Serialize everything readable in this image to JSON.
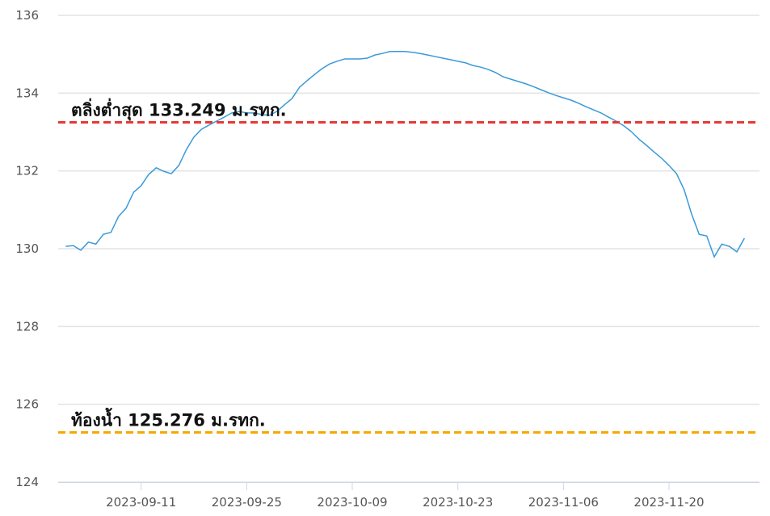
{
  "chart_data": {
    "type": "line",
    "x": [
      "2023-09-01",
      "2023-09-02",
      "2023-09-03",
      "2023-09-04",
      "2023-09-05",
      "2023-09-06",
      "2023-09-07",
      "2023-09-08",
      "2023-09-09",
      "2023-09-10",
      "2023-09-11",
      "2023-09-12",
      "2023-09-13",
      "2023-09-14",
      "2023-09-15",
      "2023-09-16",
      "2023-09-17",
      "2023-09-18",
      "2023-09-19",
      "2023-09-20",
      "2023-09-21",
      "2023-09-22",
      "2023-09-23",
      "2023-09-24",
      "2023-09-25",
      "2023-09-26",
      "2023-09-27",
      "2023-09-28",
      "2023-09-29",
      "2023-09-30",
      "2023-10-01",
      "2023-10-02",
      "2023-10-03",
      "2023-10-04",
      "2023-10-05",
      "2023-10-06",
      "2023-10-07",
      "2023-10-08",
      "2023-10-09",
      "2023-10-10",
      "2023-10-11",
      "2023-10-12",
      "2023-10-13",
      "2023-10-14",
      "2023-10-15",
      "2023-10-16",
      "2023-10-17",
      "2023-10-18",
      "2023-10-19",
      "2023-10-20",
      "2023-10-21",
      "2023-10-22",
      "2023-10-23",
      "2023-10-24",
      "2023-10-25",
      "2023-10-26",
      "2023-10-27",
      "2023-10-28",
      "2023-10-29",
      "2023-10-30",
      "2023-10-31",
      "2023-11-01",
      "2023-11-02",
      "2023-11-03",
      "2023-11-04",
      "2023-11-05",
      "2023-11-06",
      "2023-11-07",
      "2023-11-08",
      "2023-11-09",
      "2023-11-10",
      "2023-11-11",
      "2023-11-12",
      "2023-11-13",
      "2023-11-14",
      "2023-11-15",
      "2023-11-16",
      "2023-11-17",
      "2023-11-18",
      "2023-11-19",
      "2023-11-20",
      "2023-11-21",
      "2023-11-22",
      "2023-11-23",
      "2023-11-24",
      "2023-11-25",
      "2023-11-26",
      "2023-11-27",
      "2023-11-28",
      "2023-11-29",
      "2023-11-30"
    ],
    "series": [
      {
        "color": "#3a9ad9",
        "values": [
          130.06,
          130.08,
          129.96,
          130.17,
          130.12,
          130.37,
          130.42,
          130.83,
          131.04,
          131.45,
          131.62,
          131.91,
          132.08,
          131.99,
          131.93,
          132.14,
          132.55,
          132.87,
          133.07,
          133.18,
          133.28,
          133.38,
          133.49,
          133.53,
          133.49,
          133.49,
          133.45,
          133.43,
          133.53,
          133.7,
          133.86,
          134.15,
          134.32,
          134.48,
          134.63,
          134.75,
          134.82,
          134.88,
          134.88,
          134.88,
          134.9,
          134.98,
          135.02,
          135.07,
          135.07,
          135.07,
          135.05,
          135.02,
          134.98,
          134.94,
          134.9,
          134.86,
          134.82,
          134.78,
          134.71,
          134.67,
          134.61,
          134.53,
          134.42,
          134.36,
          134.3,
          134.24,
          134.17,
          134.09,
          134.01,
          133.94,
          133.88,
          133.82,
          133.74,
          133.65,
          133.57,
          133.49,
          133.38,
          133.28,
          133.16,
          133.01,
          132.82,
          132.66,
          132.49,
          132.33,
          132.14,
          131.93,
          131.52,
          130.89,
          130.37,
          130.33,
          129.79,
          130.12,
          130.06,
          129.92,
          130.27
        ]
      }
    ],
    "reference_lines": [
      {
        "label": "ตลิ่งต่ำสุด 133.249 ม.รทก.",
        "value": 133.249,
        "color": "#e53935"
      },
      {
        "label": "ท้องน้ำ 125.276 ม.รทก.",
        "value": 125.276,
        "color": "#f5a800"
      }
    ],
    "xlim": [
      "2023-08-31",
      "2023-12-02"
    ],
    "xticks": [
      "2023-09-11",
      "2023-09-25",
      "2023-10-09",
      "2023-10-23",
      "2023-11-06",
      "2023-11-20"
    ],
    "ylim": [
      124,
      136
    ],
    "yticks": [
      124,
      126,
      128,
      130,
      132,
      134,
      136
    ],
    "grid": true
  }
}
